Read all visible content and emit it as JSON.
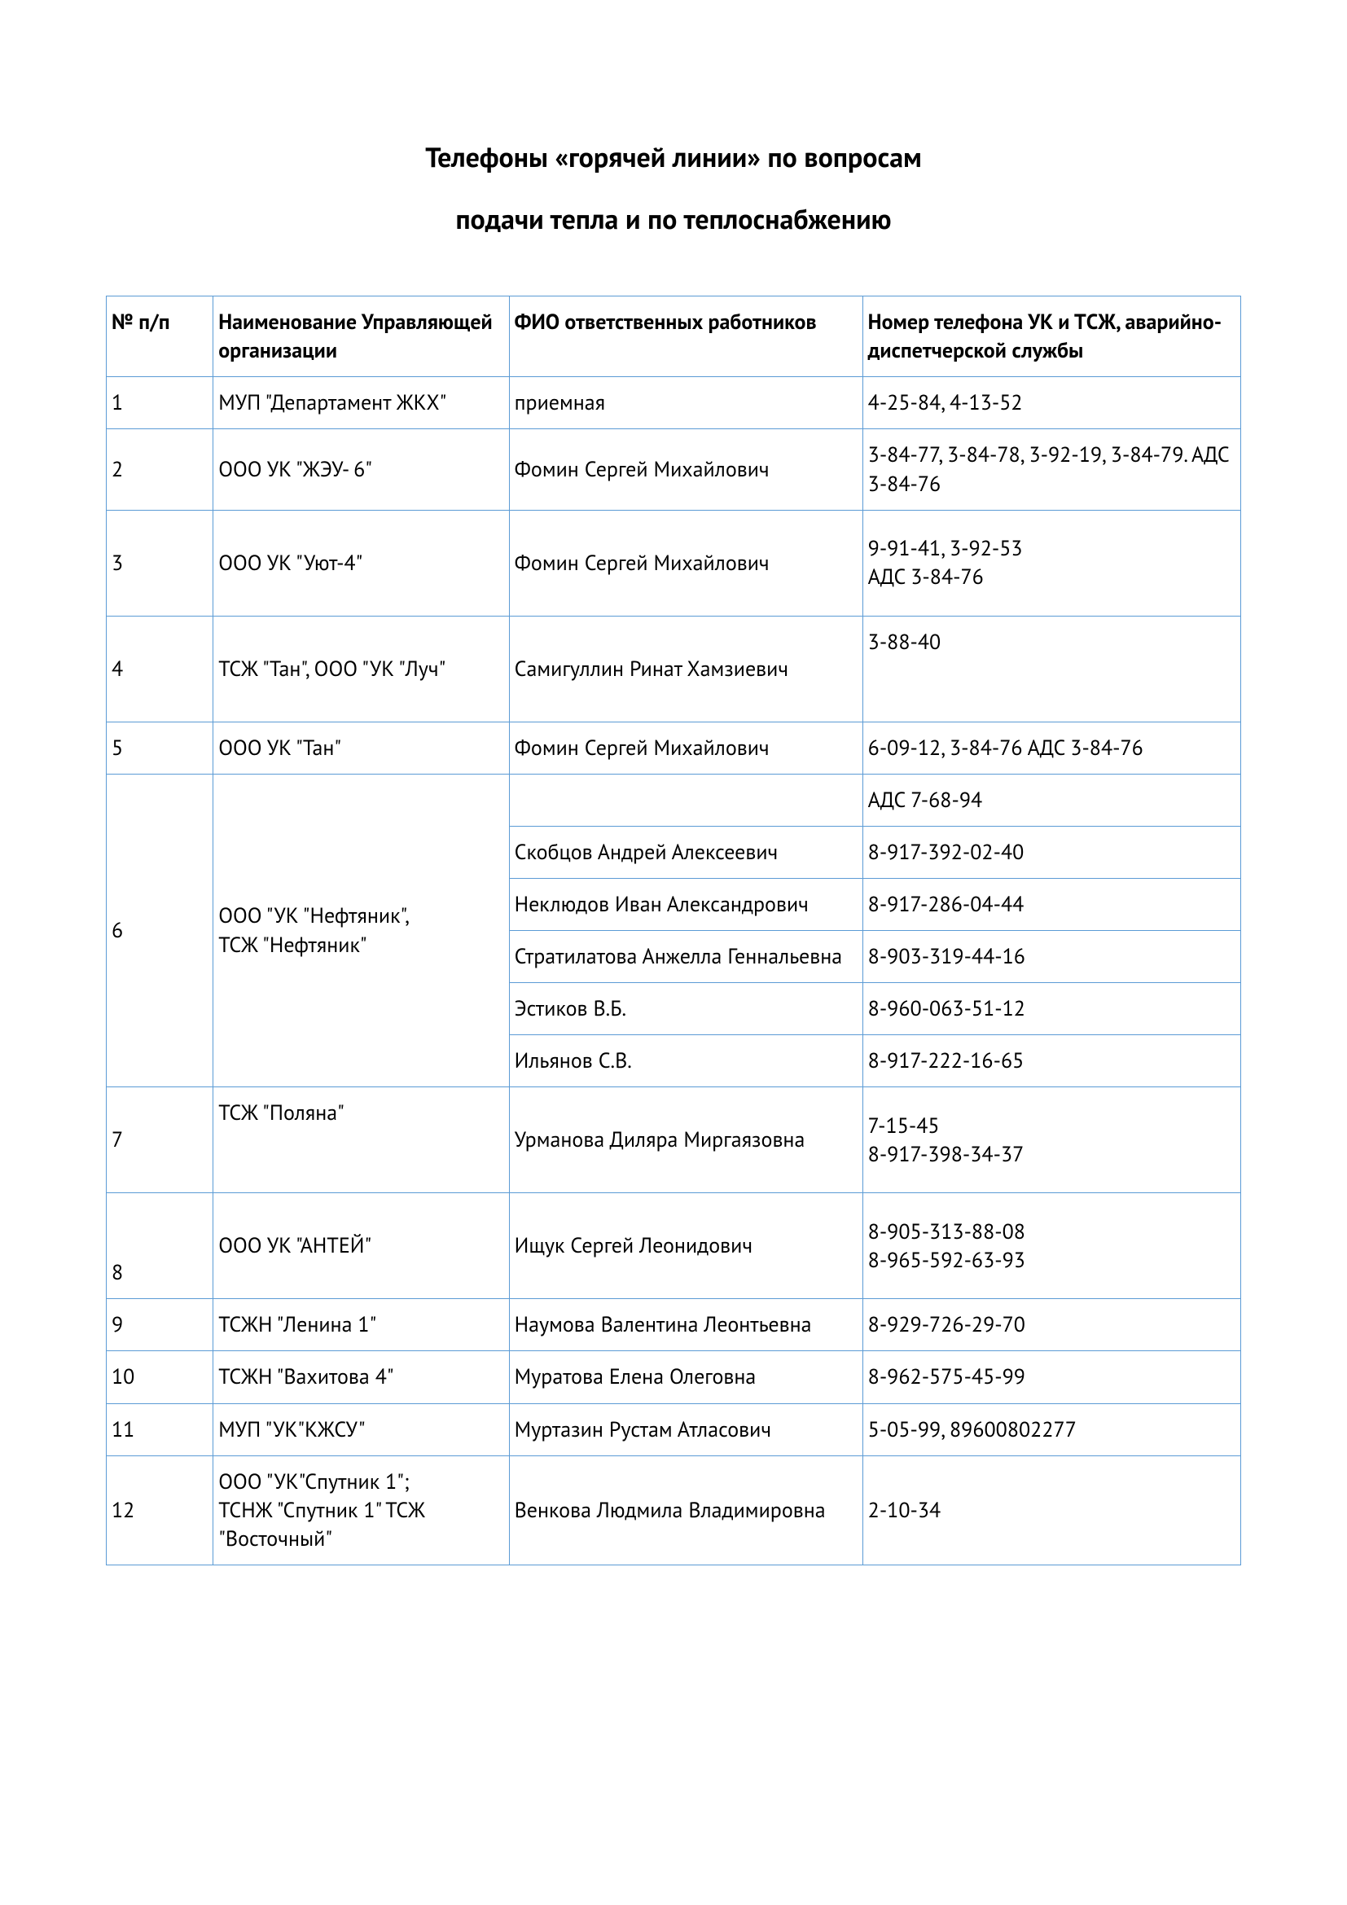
{
  "title": {
    "line1": "Телефоны «горячей линии» по вопросам",
    "line2": "подачи тепла и по теплоснабжению"
  },
  "table": {
    "border_color": "#5b9bd5",
    "columns": {
      "num": "№ п/п",
      "org": "Наименование Управляющей организации",
      "fio": "ФИО ответственных работников",
      "tel": "Номер телефона УК и ТCЖ, аварийно-диспетчерской службы"
    },
    "rows": {
      "r1": {
        "num": "1",
        "org": "МУП \"Департамент ЖКХ\"",
        "fio": "приемная",
        "tel": "4-25-84, 4-13-52"
      },
      "r2": {
        "num": "2",
        "org": "ООО УК \"ЖЭУ- 6\"",
        "fio": "Фомин Сергей Михайлович",
        "tel": "3-84-77, 3-84-78, 3-92-19, 3-84-79. АДС 3-84-76"
      },
      "r3": {
        "num": "3",
        "org": "ООО УК \"Уют-4\"",
        "fio": "Фомин Сергей Михайлович",
        "tel": "9-91-41, 3-92-53\nАДС 3-84-76"
      },
      "r4": {
        "num": "4",
        "org": "ТСЖ \"Тан\", ООО \"УК \"Луч\"",
        "fio": "Самигуллин Ринат Хамзиевич",
        "tel": "3-88-40"
      },
      "r5": {
        "num": "5",
        "org": "ООО УК \"Тан\"",
        "fio": "Фомин Сергей Михайлович",
        "tel": "6-09-12, 3-84-76     АДС 3-84-76"
      },
      "r6": {
        "num": "6",
        "org": "ООО \"УК \"Нефтяник\",\nТСЖ \"Нефтяник\"",
        "sub": [
          {
            "fio": "",
            "tel": "АДС 7-68-94"
          },
          {
            "fio": "Скобцов Андрей Алексеевич",
            "tel": "8-917-392-02-40"
          },
          {
            "fio": "Неклюдов Иван Александрович",
            "tel": "8-917-286-04-44"
          },
          {
            "fio": "Стратилатова Анжелла Геннальевна",
            "tel": "8-903-319-44-16"
          },
          {
            "fio": "Эстиков В.Б.",
            "tel": "8-960-063-51-12"
          },
          {
            "fio": "Ильянов С.В.",
            "tel": "8-917-222-16-65"
          }
        ]
      },
      "r7": {
        "num": "7",
        "org": "ТСЖ \"Поляна\"",
        "fio": "Урманова Диляра Миргаязовна",
        "tel": "7-15-45\n8-917-398-34-37"
      },
      "r8": {
        "num": "8",
        "org": "ООО УК \"АНТЕЙ\"",
        "fio": "Ищук Сергей Леонидович",
        "tel": "8-905-313-88-08\n8-965-592-63-93"
      },
      "r9": {
        "num": "9",
        "org": "ТСЖН \"Ленина 1\"",
        "fio": "Наумова Валентина Леонтьевна",
        "tel": "8-929-726-29-70"
      },
      "r10": {
        "num": "10",
        "org": "ТСЖН \"Вахитова 4\"",
        "fio": "Муратова Елена Олеговна",
        "tel": "8-962-575-45-99"
      },
      "r11": {
        "num": "11",
        "org": "МУП \"УК\"КЖСУ\"",
        "fio": "Муртазин Рустам Атласович",
        "tel": "5-05-99, 89600802277"
      },
      "r12": {
        "num": "12",
        "org": "ООО \"УК\"Спутник 1\";\nТСНЖ \"Спутник 1\" ТСЖ \"Восточный\"",
        "fio": "Венкова Людмила Владимировна",
        "tel": "2-10-34"
      }
    }
  }
}
